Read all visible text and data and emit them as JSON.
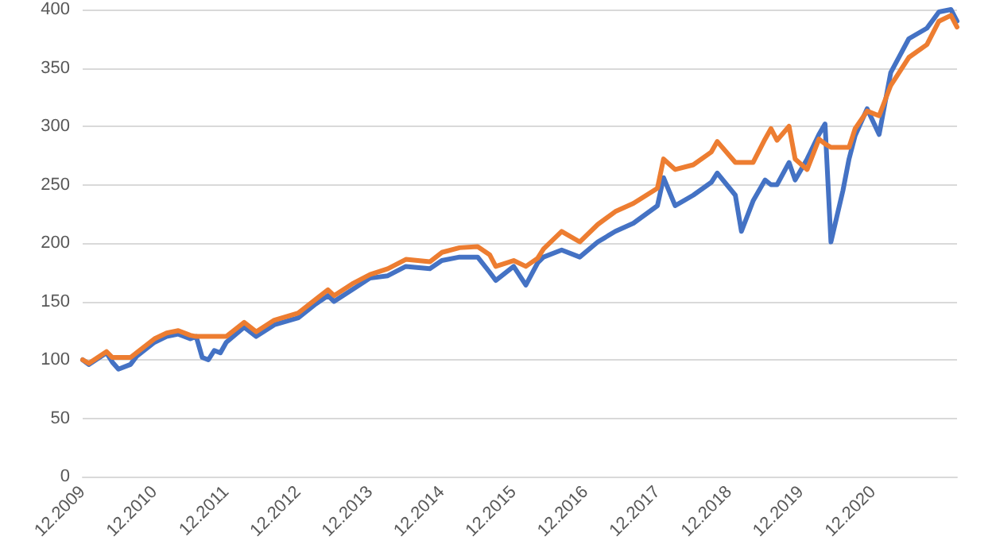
{
  "chart_data": {
    "type": "line",
    "x": [
      "2009-12",
      "2010-01",
      "2010-04",
      "2010-05",
      "2010-06",
      "2010-08",
      "2010-09",
      "2010-12",
      "2011-02",
      "2011-04",
      "2011-06",
      "2011-07",
      "2011-08",
      "2011-09",
      "2011-10",
      "2011-11",
      "2011-12",
      "2012-03",
      "2012-05",
      "2012-08",
      "2012-12",
      "2013-03",
      "2013-05",
      "2013-06",
      "2013-09",
      "2013-12",
      "2014-03",
      "2014-06",
      "2014-10",
      "2014-12",
      "2015-03",
      "2015-06",
      "2015-08",
      "2015-09",
      "2015-12",
      "2016-02",
      "2016-04",
      "2016-05",
      "2016-08",
      "2016-11",
      "2017-02",
      "2017-05",
      "2017-08",
      "2017-12",
      "2018-01",
      "2018-03",
      "2018-06",
      "2018-09",
      "2018-10",
      "2019-01",
      "2019-02",
      "2019-04",
      "2019-06",
      "2019-07",
      "2019-08",
      "2019-10",
      "2019-11",
      "2020-01",
      "2020-03",
      "2020-04",
      "2020-05",
      "2020-07",
      "2020-08",
      "2020-09",
      "2020-11",
      "2021-01",
      "2021-03",
      "2021-06",
      "2021-09",
      "2021-11",
      "2022-01",
      "2022-02"
    ],
    "series": [
      {
        "color": "#4472c4",
        "values": [
          100,
          96,
          106,
          98,
          92,
          96,
          103,
          115,
          120,
          122,
          118,
          120,
          102,
          100,
          108,
          106,
          115,
          128,
          120,
          130,
          136,
          148,
          155,
          150,
          160,
          170,
          172,
          180,
          178,
          185,
          188,
          188,
          175,
          168,
          180,
          164,
          183,
          188,
          194,
          188,
          201,
          210,
          217,
          232,
          256,
          232,
          241,
          252,
          260,
          241,
          210,
          236,
          254,
          250,
          250,
          269,
          254,
          272,
          293,
          302,
          201,
          245,
          272,
          292,
          315,
          293,
          346,
          375,
          384,
          398,
          400,
          390
        ]
      },
      {
        "color": "#ed7d31",
        "values": [
          100,
          97,
          107,
          102,
          102,
          102,
          106,
          118,
          123,
          125,
          121,
          120,
          120,
          120,
          120,
          120,
          120,
          132,
          124,
          134,
          140,
          152,
          160,
          155,
          165,
          173,
          178,
          186,
          184,
          192,
          196,
          197,
          190,
          180,
          185,
          180,
          187,
          195,
          210,
          201,
          216,
          227,
          234,
          247,
          272,
          263,
          267,
          278,
          287,
          269,
          269,
          269,
          289,
          298,
          288,
          300,
          272,
          263,
          289,
          285,
          282,
          282,
          282,
          298,
          313,
          309,
          335,
          359,
          370,
          390,
          395,
          385
        ]
      }
    ],
    "xlim": [
      "2009-12",
      "2022-02"
    ],
    "xticks": [
      {
        "value": "2009-12",
        "label": "12.2009"
      },
      {
        "value": "2010-12",
        "label": "12.2010"
      },
      {
        "value": "2011-12",
        "label": "12.2011"
      },
      {
        "value": "2012-12",
        "label": "12.2012"
      },
      {
        "value": "2013-12",
        "label": "12.2013"
      },
      {
        "value": "2014-12",
        "label": "12.2014"
      },
      {
        "value": "2015-12",
        "label": "12.2015"
      },
      {
        "value": "2016-12",
        "label": "12.2016"
      },
      {
        "value": "2017-12",
        "label": "12.2017"
      },
      {
        "value": "2018-12",
        "label": "12.2018"
      },
      {
        "value": "2019-12",
        "label": "12.2019"
      },
      {
        "value": "2020-12",
        "label": "12.2020"
      }
    ],
    "ylim": [
      0,
      400
    ],
    "yticks": [
      0,
      50,
      100,
      150,
      200,
      250,
      300,
      350,
      400
    ],
    "grid": "y",
    "marker": "none",
    "line_style": "solid"
  }
}
